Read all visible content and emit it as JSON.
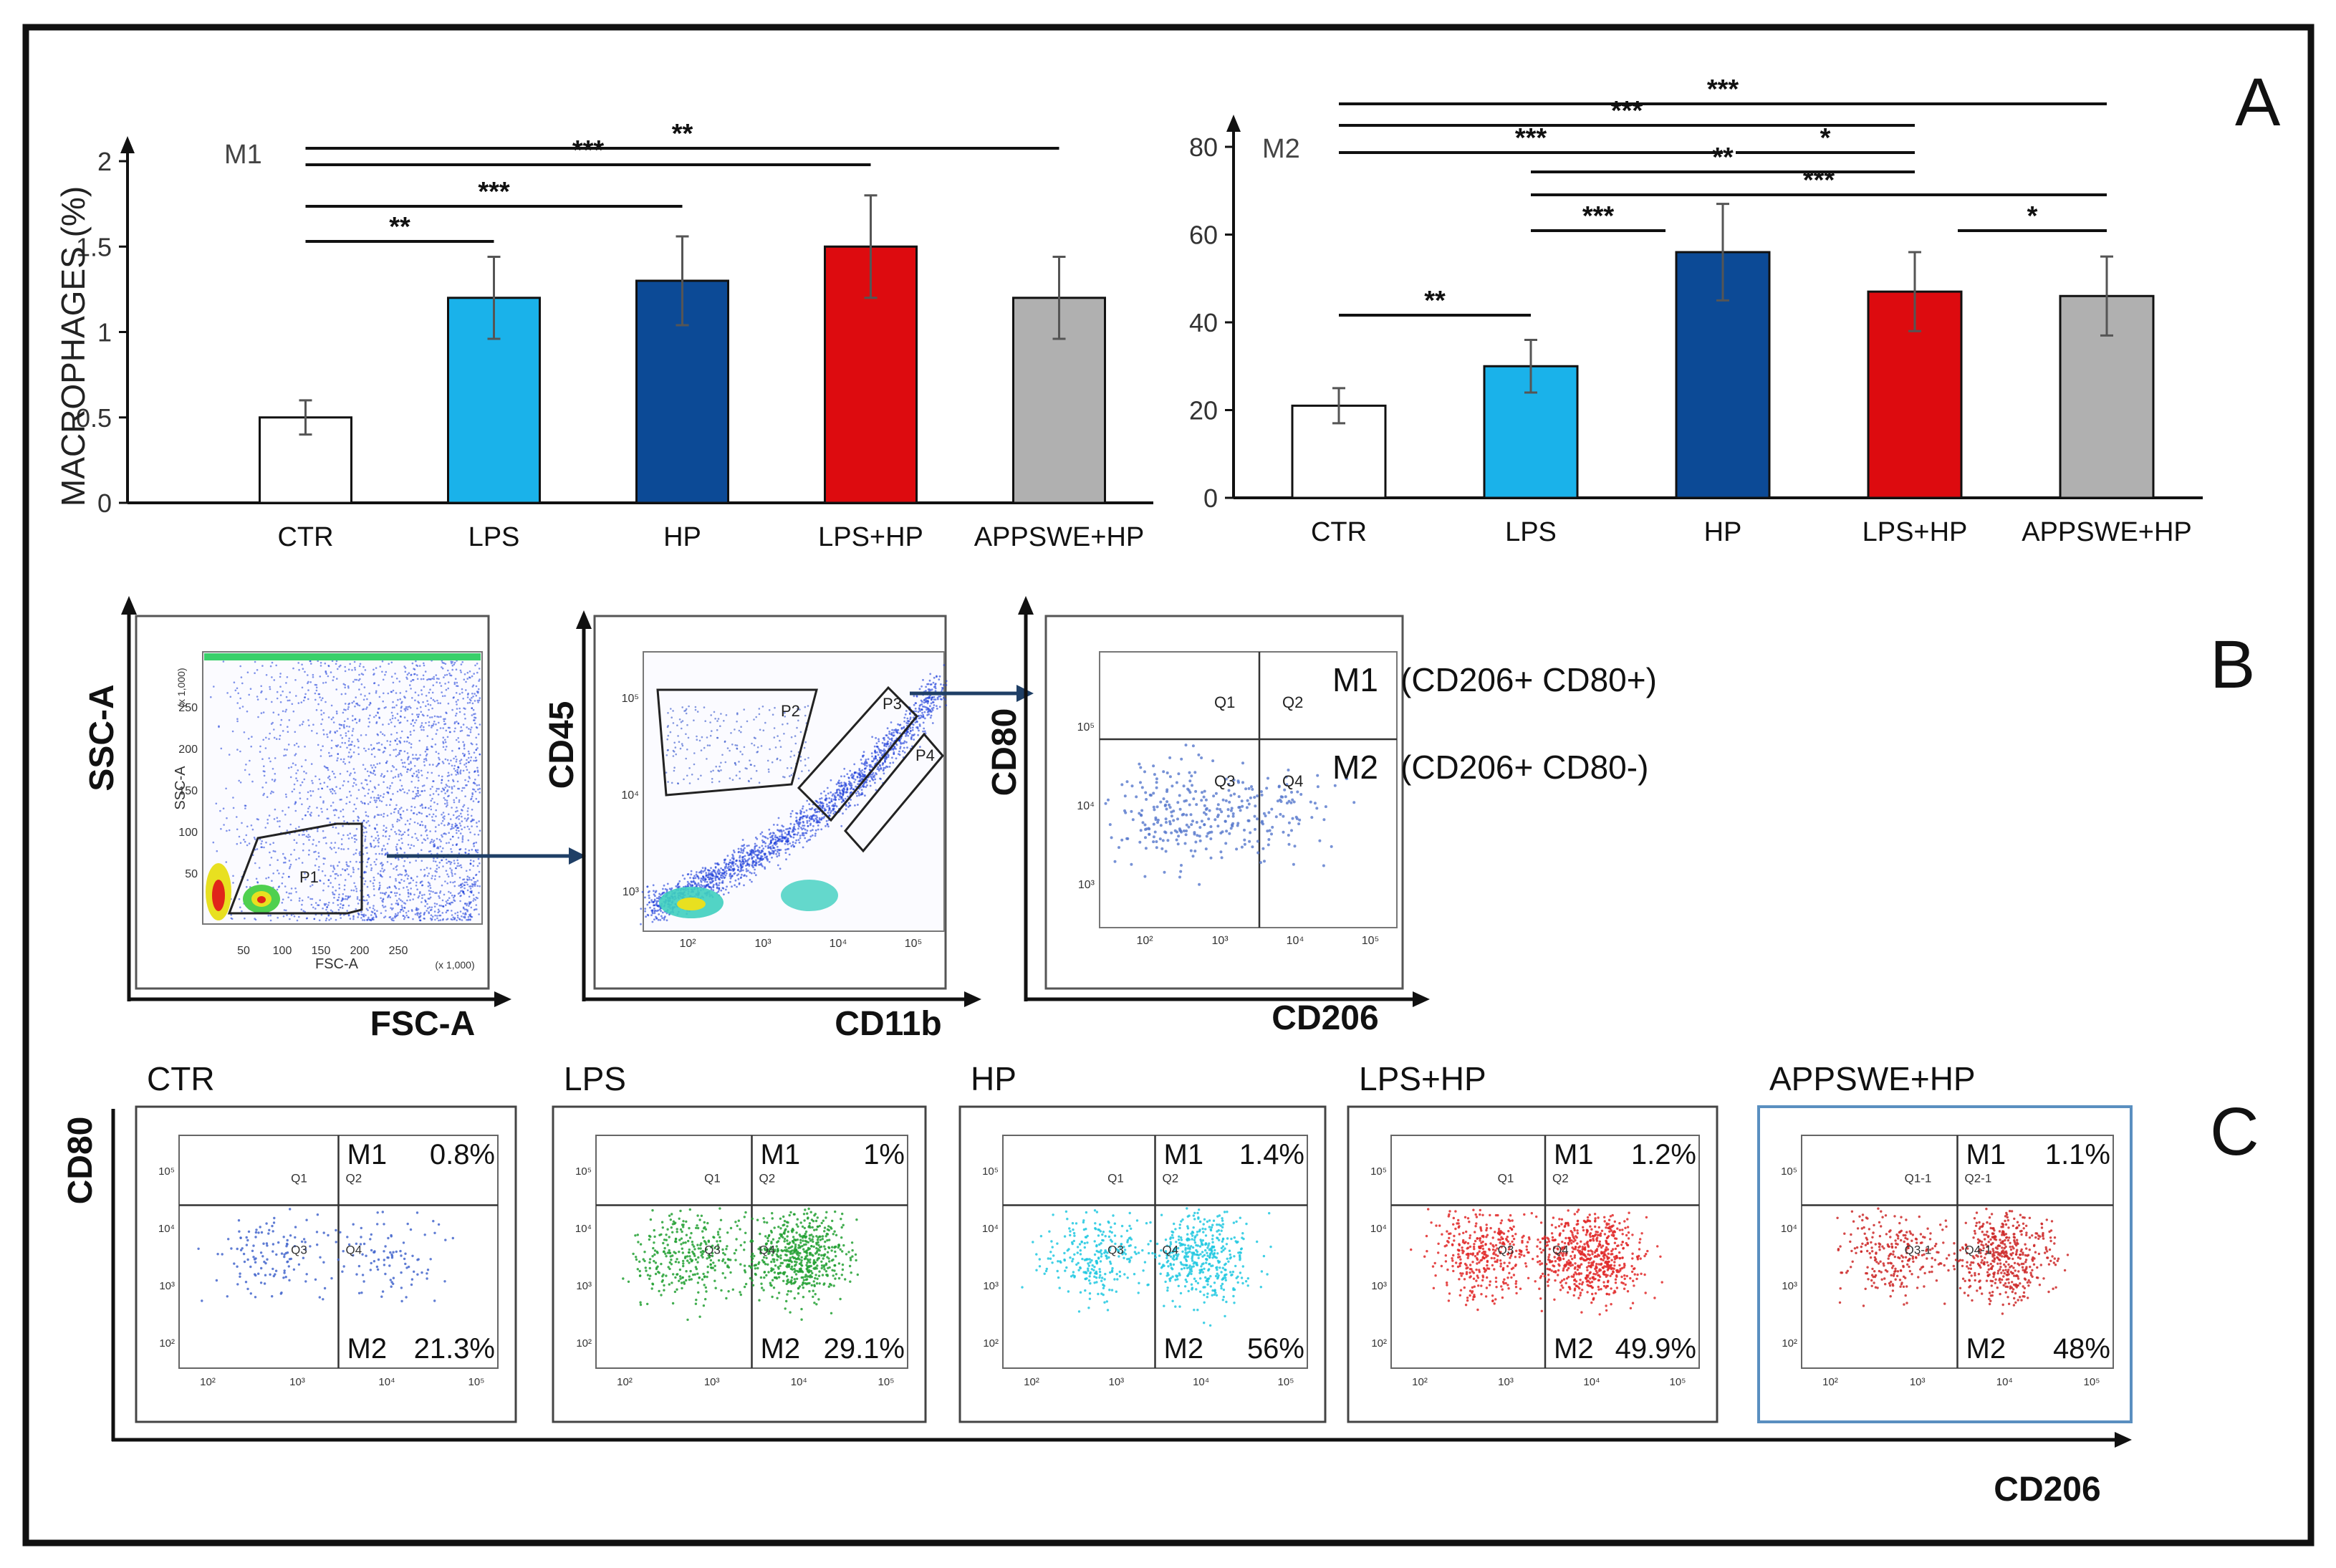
{
  "panel_labels": {
    "a": "A",
    "b": "B",
    "c": "C"
  },
  "colors": {
    "ctr": "#ffffff",
    "lps": "#1ab2ea",
    "hp": "#0c4a96",
    "lpshp": "#dd0b0f",
    "appswehp": "#b0b0b0",
    "flow_ctr": "#4466cc",
    "flow_lps": "#22a032",
    "flow_hp": "#20c8e0",
    "flow_lpshp": "#e02828",
    "flow_appswe": "#cc2828",
    "arrow": "#1f3f66",
    "appswe_frame": "#5a8fc0"
  },
  "chart_data": [
    {
      "type": "bar",
      "panel_title": "M1",
      "ylabel": "MACROPHAGES (%)",
      "categories": [
        "CTR",
        "LPS",
        "HP",
        "LPS+HP",
        "APPSWE+HP"
      ],
      "values": [
        0.5,
        1.2,
        1.3,
        1.5,
        1.2
      ],
      "errors": [
        0.1,
        0.24,
        0.26,
        0.3,
        0.24
      ],
      "ylim": [
        0,
        2
      ],
      "yticks": [
        "0",
        "0.5",
        "1",
        "1.5",
        "2"
      ],
      "significance": [
        {
          "from": 0,
          "to": 4,
          "label": "**"
        },
        {
          "from": 0,
          "to": 3,
          "label": "***"
        },
        {
          "from": 0,
          "to": 2,
          "label": "***"
        },
        {
          "from": 0,
          "to": 1,
          "label": "**"
        }
      ]
    },
    {
      "type": "bar",
      "panel_title": "M2",
      "ylabel": "",
      "categories": [
        "CTR",
        "LPS",
        "HP",
        "LPS+HP",
        "APPSWE+HP"
      ],
      "values": [
        21,
        30,
        56,
        47,
        46
      ],
      "errors": [
        4,
        6,
        11,
        9,
        9
      ],
      "ylim": [
        0,
        80
      ],
      "yticks": [
        "0",
        "20",
        "40",
        "60",
        "80"
      ],
      "significance": [
        {
          "from": 0,
          "to": 4,
          "label": "***"
        },
        {
          "from": 0,
          "to": 3,
          "label": "***"
        },
        {
          "from": 0,
          "to": 2,
          "label": "***"
        },
        {
          "from": 2,
          "to": 3,
          "label": "*"
        },
        {
          "from": 1,
          "to": 3,
          "label": "**"
        },
        {
          "from": 1,
          "to": 4,
          "label": "***"
        },
        {
          "from": 1,
          "to": 2,
          "label": "***"
        },
        {
          "from": 3,
          "to": 4,
          "label": "*"
        },
        {
          "from": 0,
          "to": 1,
          "label": "**"
        }
      ]
    }
  ],
  "gating": {
    "plot1": {
      "xlabel": "FSC-A",
      "ylabel": "SSC-A",
      "inner_y": "SSC-A",
      "inner_x": "FSC-A",
      "x_mult": "(x 1,000)",
      "y_mult": "(x 1,000)",
      "gate": "P1",
      "xticks": [
        "50",
        "100",
        "150",
        "200",
        "250"
      ],
      "yticks": [
        "50",
        "100",
        "150",
        "200",
        "250"
      ]
    },
    "plot2": {
      "xlabel": "CD11b",
      "ylabel": "CD45",
      "gates": [
        "P2",
        "P3",
        "P4"
      ]
    },
    "plot3": {
      "xlabel": "CD206",
      "ylabel": "CD80",
      "quadrants": [
        "Q1",
        "Q2",
        "Q3",
        "Q4"
      ]
    },
    "legend_m1_key": "M1",
    "legend_m1": "(CD206+ CD80+)",
    "legend_m2_key": "M2",
    "legend_m2": "(CD206+ CD80-)"
  },
  "flow_panels": {
    "xlabel": "CD206",
    "ylabel": "CD80",
    "items": [
      {
        "title": "CTR",
        "m1_label": "M1",
        "m1_value": "0.8%",
        "m2_label": "M2",
        "m2_value": "21.3%",
        "q": [
          "Q1",
          "Q2",
          "Q3",
          "Q4"
        ]
      },
      {
        "title": "LPS",
        "m1_label": "M1",
        "m1_value": "1%",
        "m2_label": "M2",
        "m2_value": "29.1%",
        "q": [
          "Q1",
          "Q2",
          "Q3",
          "Q4"
        ]
      },
      {
        "title": "HP",
        "m1_label": "M1",
        "m1_value": "1.4%",
        "m2_label": "M2",
        "m2_value": "56%",
        "q": [
          "Q1",
          "Q2",
          "Q3",
          "Q4"
        ]
      },
      {
        "title": "LPS+HP",
        "m1_label": "M1",
        "m1_value": "1.2%",
        "m2_label": "M2",
        "m2_value": "49.9%",
        "q": [
          "Q1",
          "Q2",
          "Q3",
          "Q4"
        ]
      },
      {
        "title": "APPSWE+HP",
        "m1_label": "M1",
        "m1_value": "1.1%",
        "m2_label": "M2",
        "m2_value": "48%",
        "q": [
          "Q1-1",
          "Q2-1",
          "Q3-1",
          "Q4-1"
        ]
      }
    ]
  }
}
